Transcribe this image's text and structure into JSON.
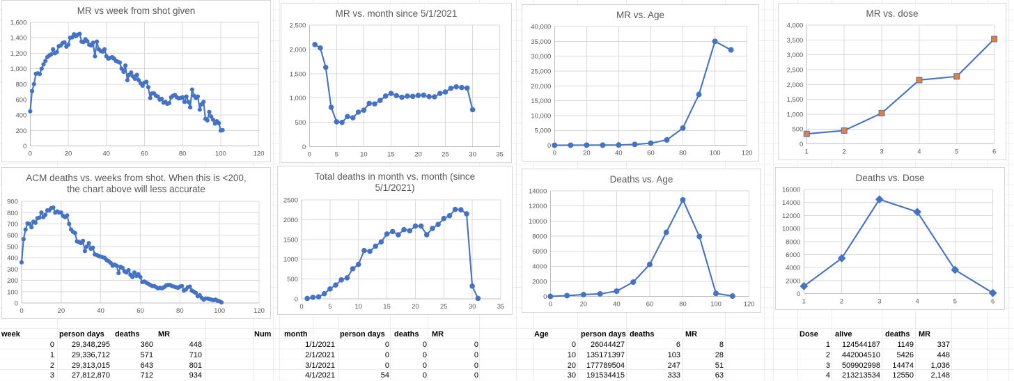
{
  "app": {
    "kind": "spreadsheet-with-charts"
  },
  "colors": {
    "series_blue": "#4472C4",
    "marker_orange": "#ED7D31",
    "chart_grid": "#d9d9d9",
    "axis_line": "#bfbfbf",
    "chart_text": "#595959",
    "card_border": "#d6d6d6"
  },
  "chart_data": [
    {
      "type": "line",
      "title": "MR vs week from shot given",
      "xlabel": "",
      "ylabel": "",
      "xlim": [
        0,
        120
      ],
      "ylim": [
        0,
        1600
      ],
      "xtick_labels": [
        "0",
        "20",
        "40",
        "60",
        "80",
        "100",
        "120"
      ],
      "ytick_labels": [
        "0",
        "200",
        "400",
        "600",
        "800",
        "1,000",
        "1,200",
        "1,400",
        "1,600"
      ],
      "x_auto": {
        "start": 0,
        "step": 1
      },
      "values": [
        448,
        710,
        801,
        934,
        940,
        930,
        1000,
        1055,
        1100,
        1150,
        1170,
        1185,
        1250,
        1200,
        1215,
        1290,
        1300,
        1330,
        1340,
        1285,
        1310,
        1400,
        1405,
        1445,
        1420,
        1440,
        1450,
        1350,
        1345,
        1380,
        1355,
        1310,
        1300,
        1335,
        1160,
        1350,
        1250,
        1230,
        1220,
        1250,
        1160,
        1130,
        1140,
        1150,
        1130,
        1100,
        1090,
        1080,
        1000,
        960,
        1040,
        850,
        920,
        950,
        900,
        870,
        920,
        850,
        810,
        780,
        820,
        830,
        760,
        620,
        680,
        680,
        650,
        640,
        600,
        610,
        560,
        570,
        545,
        555,
        630,
        650,
        660,
        630,
        615,
        620,
        630,
        570,
        640,
        570,
        500,
        730,
        650,
        620,
        640,
        470,
        540,
        570,
        350,
        330,
        440,
        380,
        340,
        290,
        320,
        295,
        200,
        205
      ],
      "marker": {
        "shape": "circle",
        "size": 3.1,
        "fill": "#4472C4"
      }
    },
    {
      "type": "line",
      "title": "MR vs. month since 5/1/2021",
      "xlabel": "",
      "ylabel": "",
      "xlim": [
        0,
        35
      ],
      "ylim": [
        0,
        2500
      ],
      "xtick_labels": [
        "0",
        "5",
        "10",
        "15",
        "20",
        "25",
        "30",
        "35"
      ],
      "ytick_labels": [
        "0",
        "500",
        "1,000",
        "1,500",
        "2,000",
        "2,500"
      ],
      "x_auto": {
        "start": 1,
        "step": 1
      },
      "values": [
        2100,
        2030,
        1630,
        810,
        510,
        500,
        620,
        595,
        710,
        750,
        890,
        880,
        950,
        1040,
        1095,
        1050,
        1015,
        1040,
        1035,
        1055,
        1060,
        1030,
        1025,
        1095,
        1125,
        1200,
        1230,
        1215,
        1205,
        760
      ],
      "marker": {
        "shape": "circle",
        "size": 3.8,
        "fill": "#4472C4"
      }
    },
    {
      "type": "line",
      "title": "MR vs. Age",
      "xlabel": "",
      "ylabel": "",
      "xlim": [
        0,
        120
      ],
      "ylim": [
        0,
        40000
      ],
      "xtick_labels": [
        "0",
        "20",
        "40",
        "60",
        "80",
        "100",
        "120"
      ],
      "ytick_labels": [
        "0",
        "5,000",
        "10,000",
        "15,000",
        "20,000",
        "25,000",
        "30,000",
        "35,000",
        "40,000"
      ],
      "x_auto": {
        "start": 0,
        "step": 10
      },
      "values": [
        8,
        28,
        51,
        63,
        100,
        300,
        700,
        1800,
        5800,
        17100,
        35000,
        32100
      ],
      "marker": {
        "shape": "circle",
        "size": 4,
        "fill": "#4472C4"
      }
    },
    {
      "type": "line",
      "title": "MR vs. dose",
      "xlabel": "",
      "ylabel": "",
      "xlim": [
        1,
        6
      ],
      "ylim": [
        0,
        4000
      ],
      "xtick_labels": [
        "1",
        "2",
        "3",
        "4",
        "5",
        "6"
      ],
      "ytick_labels": [
        "0",
        "500",
        "1,000",
        "1,500",
        "2,000",
        "2,500",
        "3,000",
        "3,500",
        "4,000"
      ],
      "x_auto": {
        "start": 1,
        "step": 1
      },
      "values": [
        337,
        448,
        1036,
        2148,
        2270,
        3530
      ],
      "marker": {
        "shape": "square",
        "size": 4,
        "fill": "#ED7D31",
        "stroke": "#4472C4"
      }
    },
    {
      "type": "line",
      "title": "ACM deaths vs. weeks from shot. When this is <200,\nthe chart above will less accurate",
      "xlabel": "",
      "ylabel": "",
      "xlim": [
        0,
        120
      ],
      "ylim": [
        0,
        900
      ],
      "xtick_labels": [
        "0",
        "20",
        "40",
        "60",
        "80",
        "100",
        "120"
      ],
      "ytick_labels": [
        "0",
        "100",
        "200",
        "300",
        "400",
        "500",
        "600",
        "700",
        "800",
        "900"
      ],
      "x_auto": {
        "start": 0,
        "step": 1
      },
      "values": [
        360,
        565,
        650,
        705,
        700,
        670,
        720,
        710,
        750,
        755,
        800,
        760,
        780,
        820,
        820,
        840,
        845,
        800,
        810,
        800,
        800,
        770,
        760,
        775,
        700,
        650,
        630,
        620,
        545,
        540,
        530,
        550,
        460,
        500,
        530,
        480,
        490,
        430,
        425,
        415,
        410,
        405,
        400,
        380,
        370,
        355,
        330,
        340,
        330,
        265,
        320,
        310,
        280,
        270,
        290,
        250,
        230,
        270,
        240,
        255,
        230,
        185,
        190,
        180,
        170,
        160,
        150,
        150,
        140,
        130,
        135,
        130,
        140,
        155,
        160,
        160,
        150,
        145,
        140,
        135,
        145,
        150,
        110,
        120,
        140,
        145,
        110,
        100,
        90,
        60,
        70,
        45,
        30,
        40,
        40,
        35,
        30,
        25,
        30,
        20,
        15,
        5
      ],
      "marker": {
        "shape": "circle",
        "size": 3.1,
        "fill": "#4472C4"
      }
    },
    {
      "type": "line",
      "title": "Total deaths in month vs. month (since\n5/1/2021)",
      "xlabel": "",
      "ylabel": "",
      "xlim": [
        0,
        35
      ],
      "ylim": [
        0,
        2500
      ],
      "xtick_labels": [
        "0",
        "5",
        "10",
        "15",
        "20",
        "25",
        "30",
        "35"
      ],
      "ytick_labels": [
        "0",
        "500",
        "1000",
        "1500",
        "2000",
        "2500"
      ],
      "x_auto": {
        "start": 1,
        "step": 1
      },
      "values": [
        10,
        40,
        50,
        130,
        250,
        350,
        480,
        530,
        760,
        870,
        1220,
        1200,
        1330,
        1440,
        1640,
        1700,
        1620,
        1750,
        1720,
        1840,
        1840,
        1620,
        1780,
        1880,
        2030,
        2100,
        2260,
        2250,
        2150,
        320,
        10
      ],
      "marker": {
        "shape": "circle",
        "size": 3.8,
        "fill": "#4472C4"
      }
    },
    {
      "type": "line",
      "title": "Deaths vs. Age",
      "xlabel": "",
      "ylabel": "",
      "xlim": [
        0,
        120
      ],
      "ylim": [
        0,
        14000
      ],
      "xtick_labels": [
        "0",
        "20",
        "40",
        "60",
        "80",
        "100",
        "120"
      ],
      "ytick_labels": [
        "0",
        "2000",
        "4000",
        "6000",
        "8000",
        "10000",
        "12000",
        "14000"
      ],
      "x_auto": {
        "start": 0,
        "step": 10
      },
      "values": [
        6,
        103,
        247,
        333,
        700,
        1900,
        4250,
        8500,
        12800,
        7950,
        400,
        50
      ],
      "marker": {
        "shape": "circle",
        "size": 4,
        "fill": "#4472C4"
      }
    },
    {
      "type": "line",
      "title": "Deaths vs. Dose",
      "xlabel": "",
      "ylabel": "",
      "xlim": [
        1,
        6
      ],
      "ylim": [
        0,
        16000
      ],
      "xtick_labels": [
        "1",
        "2",
        "3",
        "4",
        "5",
        "6"
      ],
      "ytick_labels": [
        "0",
        "2000",
        "4000",
        "6000",
        "8000",
        "10000",
        "12000",
        "14000",
        "16000"
      ],
      "x_auto": {
        "start": 1,
        "step": 1
      },
      "values": [
        1149,
        5426,
        14474,
        12550,
        3650,
        100
      ],
      "marker": {
        "shape": "diamond",
        "size": 4.2,
        "fill": "#4472C4"
      }
    }
  ],
  "tables": [
    {
      "name": "week-table",
      "headers": [
        "week",
        "person days",
        "deaths",
        "MR"
      ],
      "rows": [
        [
          "0",
          "29,348,295",
          "360",
          "448"
        ],
        [
          "1",
          "29,336,712",
          "571",
          "710"
        ],
        [
          "2",
          "29,313,015",
          "643",
          "801"
        ],
        [
          "3",
          "27,812,870",
          "712",
          "934"
        ]
      ]
    },
    {
      "name": "month-table",
      "headers": [
        "Num",
        "month",
        "person days",
        "deaths",
        "MR"
      ],
      "rows": [
        [
          "",
          "1/1/2021",
          "0",
          "0",
          "0"
        ],
        [
          "",
          "2/1/2021",
          "0",
          "0",
          "0"
        ],
        [
          "",
          "3/1/2021",
          "0",
          "0",
          "0"
        ],
        [
          "",
          "4/1/2021",
          "54",
          "0",
          "0"
        ]
      ]
    },
    {
      "name": "age-table",
      "headers": [
        "Age",
        "person days",
        "deaths",
        "MR"
      ],
      "rows": [
        [
          "0",
          "26044427",
          "6",
          "8"
        ],
        [
          "10",
          "135171397",
          "103",
          "28"
        ],
        [
          "20",
          "177789504",
          "247",
          "51"
        ],
        [
          "30",
          "191534415",
          "333",
          "63"
        ]
      ]
    },
    {
      "name": "dose-table",
      "headers": [
        "Dose",
        "alive",
        "deaths",
        "MR"
      ],
      "rows": [
        [
          "1",
          "124544187",
          "1149",
          "337"
        ],
        [
          "2",
          "442004510",
          "5426",
          "448"
        ],
        [
          "3",
          "509902998",
          "14474",
          "1,036"
        ],
        [
          "4",
          "213213534",
          "12550",
          "2,148"
        ]
      ]
    }
  ]
}
